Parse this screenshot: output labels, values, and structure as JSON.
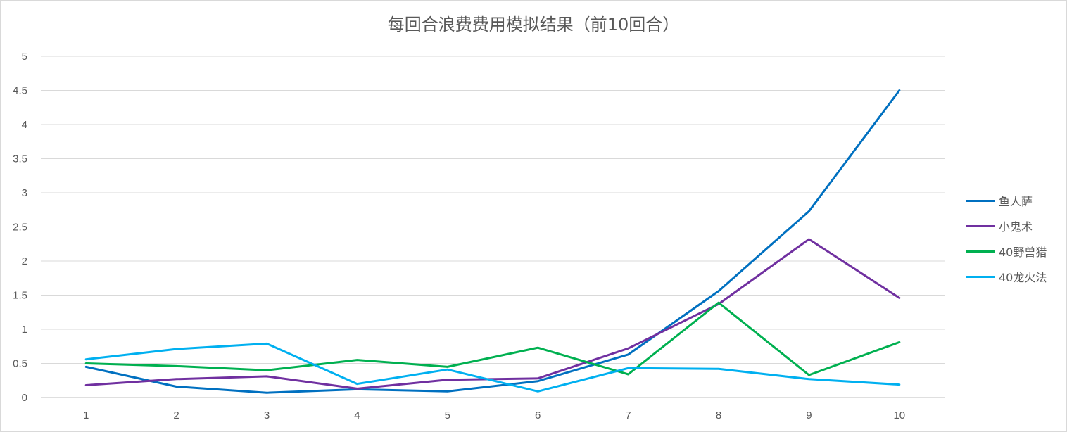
{
  "chart_data": {
    "type": "line",
    "title": "每回合浪费费用模拟结果（前10回合）",
    "xlabel": "",
    "ylabel": "",
    "x": [
      1,
      2,
      3,
      4,
      5,
      6,
      7,
      8,
      9,
      10
    ],
    "ylim": [
      0,
      5
    ],
    "yticks": [
      0,
      0.5,
      1,
      1.5,
      2,
      2.5,
      3,
      3.5,
      4,
      4.5,
      5
    ],
    "grid": true,
    "legend_position": "right",
    "series": [
      {
        "name": "鱼人萨",
        "color": "#0070c0",
        "values": [
          0.45,
          0.16,
          0.07,
          0.12,
          0.09,
          0.24,
          0.63,
          1.56,
          2.73,
          4.5
        ]
      },
      {
        "name": "小鬼术",
        "color": "#7030a0",
        "values": [
          0.18,
          0.27,
          0.31,
          0.13,
          0.26,
          0.28,
          0.72,
          1.37,
          2.32,
          1.46
        ]
      },
      {
        "name": "40野兽猎",
        "color": "#00b050",
        "values": [
          0.5,
          0.46,
          0.4,
          0.55,
          0.45,
          0.73,
          0.34,
          1.39,
          0.33,
          0.81
        ]
      },
      {
        "name": "40龙火法",
        "color": "#00b0f0",
        "values": [
          0.56,
          0.71,
          0.79,
          0.2,
          0.41,
          0.09,
          0.43,
          0.42,
          0.27,
          0.19
        ]
      }
    ]
  }
}
